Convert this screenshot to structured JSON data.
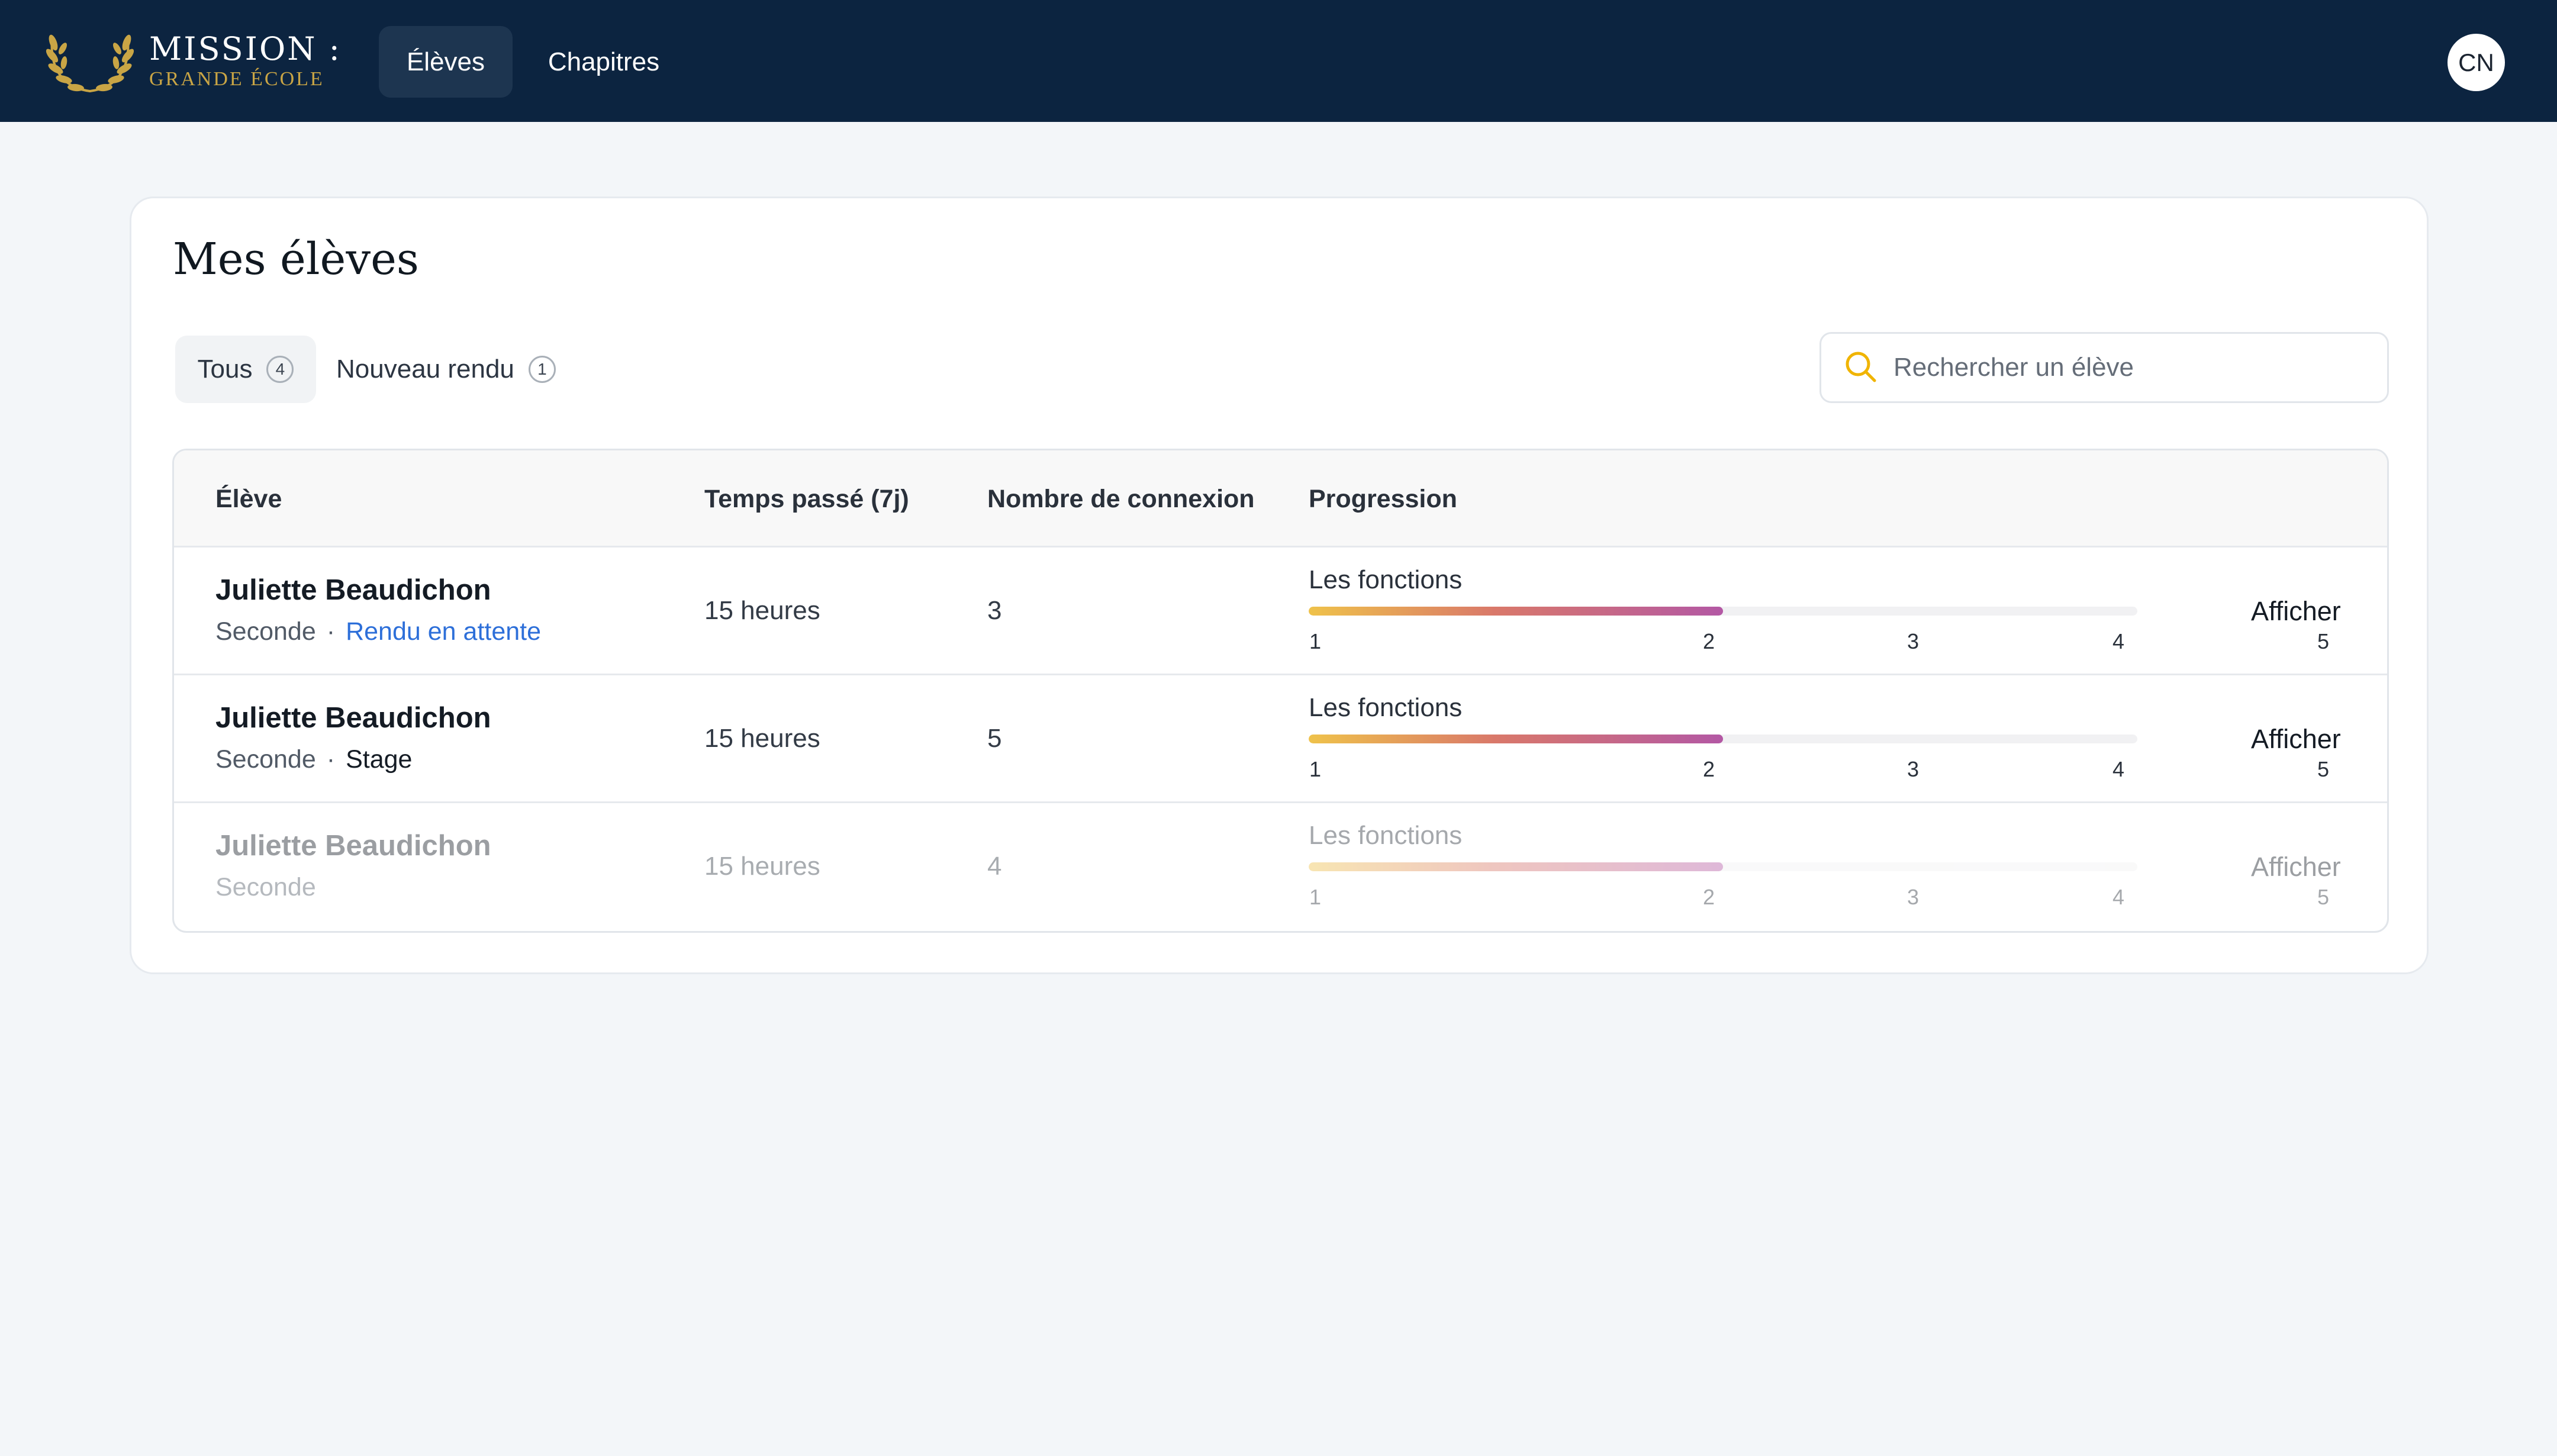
{
  "brand": {
    "title": "MISSION :",
    "subtitle": "GRANDE ÉCOLE",
    "accent_color": "#c9a545",
    "icon": "laurel-wreath-icon"
  },
  "nav": {
    "tabs": [
      {
        "label": "Élèves",
        "active": true
      },
      {
        "label": "Chapitres",
        "active": false
      }
    ],
    "avatar_initials": "CN",
    "bar_color": "#0c2440"
  },
  "page": {
    "title": "Mes élèves"
  },
  "filters": [
    {
      "label": "Tous",
      "count": "4",
      "active": true
    },
    {
      "label": "Nouveau rendu",
      "count": "1",
      "active": false
    }
  ],
  "search": {
    "placeholder": "Rechercher un élève",
    "value": "",
    "icon": "search-icon",
    "icon_color": "#f0b400"
  },
  "table": {
    "columns": [
      "Élève",
      "Temps passé (7j)",
      "Nombre de connexion",
      "Progression"
    ],
    "rows": [
      {
        "name": "Juliette Beaudichon",
        "level": "Seconde",
        "separator": "·",
        "status": "Rendu en attente",
        "status_color": "#2d6fd9",
        "time": "15 heures",
        "connections": "3",
        "chapter": "Les fonctions",
        "progress_value": 3,
        "progress_max": 5,
        "ticks": [
          "1",
          "2",
          "3",
          "4",
          "5"
        ],
        "action": "Afficher",
        "dimmed": false
      },
      {
        "name": "Juliette Beaudichon",
        "level": "Seconde",
        "separator": "·",
        "status": "Stage",
        "status_color": "#141b24",
        "time": "15 heures",
        "connections": "5",
        "chapter": "Les fonctions",
        "progress_value": 3,
        "progress_max": 5,
        "ticks": [
          "1",
          "2",
          "3",
          "4",
          "5"
        ],
        "action": "Afficher",
        "dimmed": false
      },
      {
        "name": "Juliette Beaudichon",
        "level": "Seconde",
        "separator": "",
        "status": "",
        "time": "15 heures",
        "connections": "4",
        "chapter": "Les fonctions",
        "progress_value": 3,
        "progress_max": 5,
        "ticks": [
          "1",
          "2",
          "3",
          "4",
          "5"
        ],
        "action": "Afficher",
        "dimmed": true
      }
    ]
  }
}
